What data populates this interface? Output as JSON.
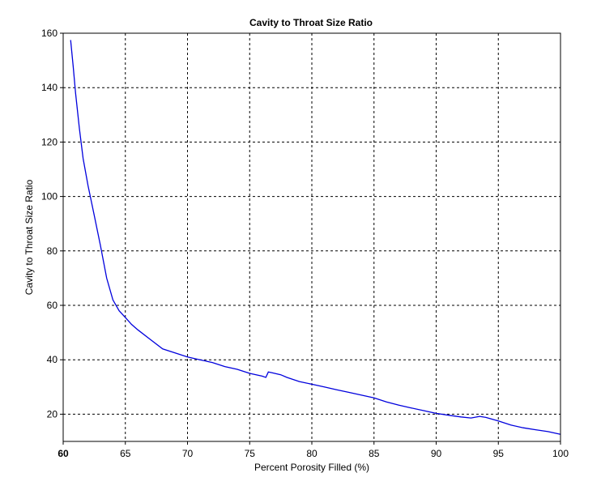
{
  "chart_data": {
    "type": "line",
    "title": "Cavity to Throat Size Ratio",
    "xlabel": "Percent Porosity Filled (%)",
    "ylabel": "Cavity to Throat Size Ratio",
    "xlim": [
      60,
      100
    ],
    "ylim": [
      10,
      160
    ],
    "xticks": [
      "60",
      "65",
      "70",
      "75",
      "80",
      "85",
      "90",
      "95",
      "100"
    ],
    "yticks": [
      "20",
      "40",
      "60",
      "80",
      "100",
      "120",
      "140",
      "160"
    ],
    "grid": true,
    "legend": "none",
    "series": [
      {
        "color": "#0000dd",
        "x": [
          60.6,
          60.8,
          61.0,
          61.3,
          61.6,
          62.0,
          62.5,
          63.0,
          63.5,
          64.0,
          64.5,
          65.0,
          65.5,
          66.0,
          67.0,
          68.0,
          69.0,
          70.0,
          71.0,
          72.0,
          73.0,
          74.0,
          75.0,
          76.0,
          76.3,
          76.5,
          76.8,
          77.5,
          78.0,
          79.0,
          80.0,
          81.0,
          82.0,
          83.0,
          84.0,
          85.0,
          86.0,
          87.0,
          88.0,
          89.0,
          90.0,
          91.0,
          92.0,
          92.8,
          93.5,
          94.0,
          95.0,
          96.0,
          97.0,
          98.0,
          99.0,
          100.0
        ],
        "y": [
          157.5,
          148,
          138,
          125,
          114,
          104,
          93,
          82,
          70,
          62,
          58,
          55.5,
          53,
          51,
          47.5,
          44,
          42.5,
          41,
          40,
          39,
          37.5,
          36.5,
          35,
          34,
          33.5,
          35.5,
          35.2,
          34.5,
          33.5,
          32,
          31,
          30,
          29,
          28,
          27,
          26,
          24.5,
          23.3,
          22.3,
          21.3,
          20.3,
          19.6,
          19.0,
          18.6,
          19.2,
          18.8,
          17.5,
          16,
          15,
          14.3,
          13.6,
          12.6
        ]
      }
    ]
  }
}
